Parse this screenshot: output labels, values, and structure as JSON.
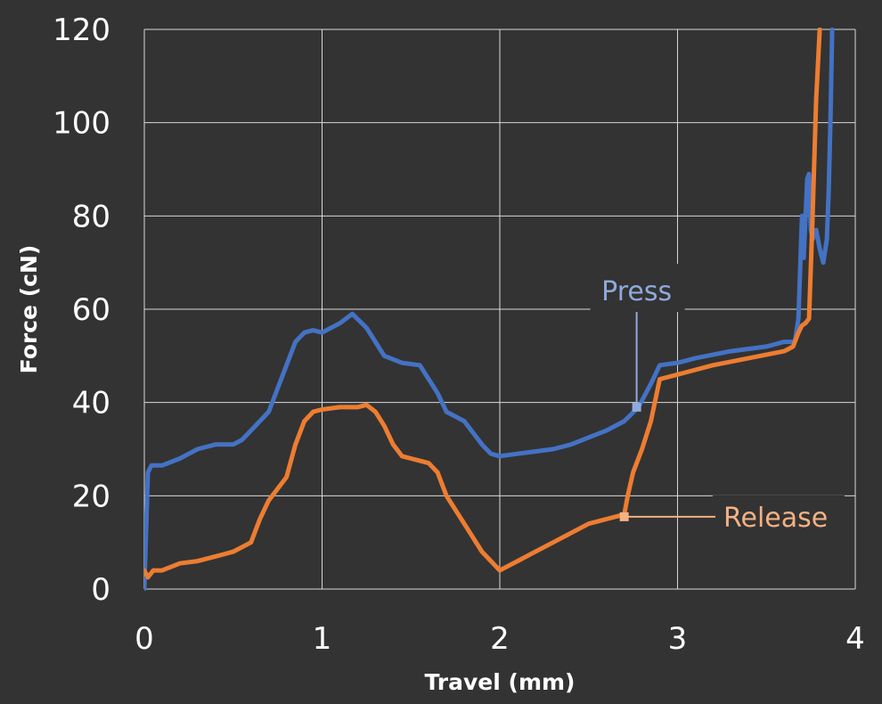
{
  "chart_data": {
    "type": "line",
    "title": "",
    "xlabel": "Travel (mm)",
    "ylabel": "Force (cN)",
    "xlim": [
      0,
      4
    ],
    "ylim": [
      0,
      120
    ],
    "xticks": [
      "0",
      "1",
      "2",
      "3",
      "4"
    ],
    "yticks": [
      "0",
      "20",
      "40",
      "60",
      "80",
      "100",
      "120"
    ],
    "grid": true,
    "background": "#333333",
    "grid_color": "#d9d9d9",
    "series": [
      {
        "name": "Press",
        "color": "#4472c4",
        "x": [
          0.0,
          0.02,
          0.04,
          0.1,
          0.2,
          0.3,
          0.4,
          0.5,
          0.55,
          0.6,
          0.7,
          0.8,
          0.85,
          0.9,
          0.95,
          1.0,
          1.1,
          1.17,
          1.25,
          1.3,
          1.35,
          1.45,
          1.55,
          1.6,
          1.65,
          1.7,
          1.8,
          1.9,
          1.95,
          2.0,
          2.1,
          2.2,
          2.3,
          2.4,
          2.5,
          2.6,
          2.7,
          2.78,
          2.85,
          2.9,
          3.0,
          3.1,
          3.3,
          3.5,
          3.6,
          3.66,
          3.68,
          3.7,
          3.71,
          3.73,
          3.74,
          3.75,
          3.76,
          3.78,
          3.8,
          3.82,
          3.84,
          3.85,
          3.86,
          3.87
        ],
        "y": [
          0,
          25,
          26.5,
          26.5,
          28,
          30,
          31,
          31,
          32,
          34,
          38,
          48,
          53,
          55,
          55.5,
          55,
          57,
          59,
          56,
          53,
          50,
          48.5,
          48,
          45,
          42,
          38,
          36,
          31,
          29,
          28.5,
          29,
          29.5,
          30,
          31,
          32.5,
          34,
          36,
          39,
          44,
          48,
          48.5,
          49.5,
          51,
          52,
          53,
          53,
          58,
          80,
          71,
          88,
          89,
          77,
          75,
          77,
          73,
          70,
          75,
          85,
          100,
          120
        ]
      },
      {
        "name": "Release",
        "color": "#ed7d31",
        "x": [
          0.0,
          0.02,
          0.05,
          0.1,
          0.2,
          0.3,
          0.4,
          0.5,
          0.6,
          0.65,
          0.7,
          0.8,
          0.85,
          0.9,
          0.95,
          1.0,
          1.1,
          1.2,
          1.25,
          1.3,
          1.35,
          1.4,
          1.45,
          1.5,
          1.55,
          1.6,
          1.65,
          1.7,
          1.75,
          1.8,
          1.9,
          2.0,
          2.05,
          2.1,
          2.2,
          2.3,
          2.4,
          2.5,
          2.6,
          2.7,
          2.72,
          2.75,
          2.8,
          2.85,
          2.9,
          3.0,
          3.1,
          3.2,
          3.4,
          3.6,
          3.65,
          3.68,
          3.7,
          3.72,
          3.74,
          3.76,
          3.78,
          3.8
        ],
        "y": [
          4,
          2.5,
          4,
          4,
          5.5,
          6,
          7,
          8,
          10,
          15,
          19,
          24,
          31,
          36,
          38,
          38.5,
          39,
          39,
          39.5,
          38,
          35,
          31,
          28.5,
          28,
          27.5,
          27,
          25,
          20,
          17,
          14,
          8,
          4,
          5,
          6,
          8,
          10,
          12,
          14,
          15,
          16,
          20,
          25,
          30,
          36,
          45,
          46,
          47,
          48,
          49.5,
          51,
          52,
          55,
          56.5,
          57,
          58,
          80,
          105,
          120
        ]
      }
    ],
    "annotations": [
      {
        "text": "Press",
        "series": "Press",
        "x": 2.77,
        "y": 39,
        "color": "#8faadc"
      },
      {
        "text": "Release",
        "series": "Release",
        "x": 2.7,
        "y": 15.5,
        "color": "#f4b183"
      }
    ]
  }
}
